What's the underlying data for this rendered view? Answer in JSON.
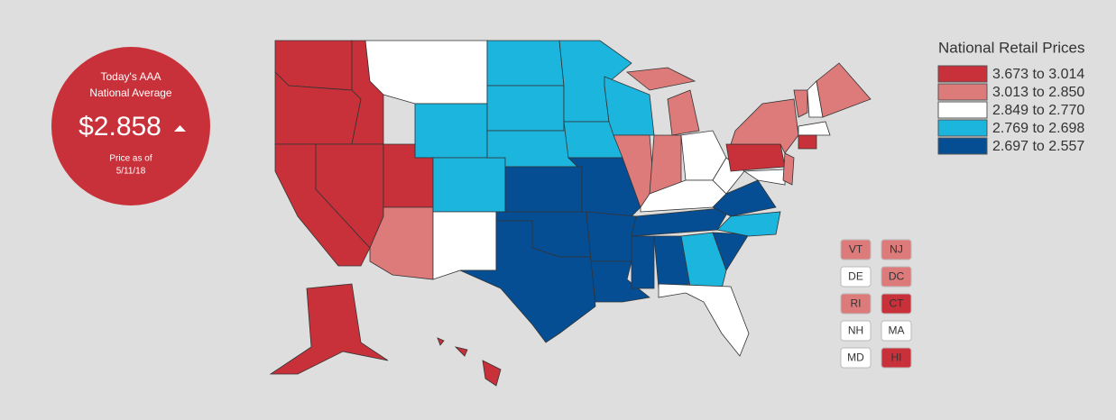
{
  "badge": {
    "title_line1": "Today's AAA",
    "title_line2": "National Average",
    "price": "$2.858",
    "date_label": "Price as of",
    "date": "5/11/18"
  },
  "legend": {
    "title": "National Retail Prices",
    "items": [
      {
        "label": "3.673 to 3.014",
        "color": "#c8313a"
      },
      {
        "label": "3.013 to 2.850",
        "color": "#dd7a7a"
      },
      {
        "label": "2.849 to 2.770",
        "color": "#ffffff"
      },
      {
        "label": "2.769 to 2.698",
        "color": "#1bb5dd"
      },
      {
        "label": "2.697 to 2.557",
        "color": "#064e94"
      }
    ]
  },
  "small_states": [
    {
      "label": "VT",
      "tier": 1
    },
    {
      "label": "NJ",
      "tier": 1
    },
    {
      "label": "DE",
      "tier": 2
    },
    {
      "label": "DC",
      "tier": 1
    },
    {
      "label": "RI",
      "tier": 1
    },
    {
      "label": "CT",
      "tier": 0
    },
    {
      "label": "NH",
      "tier": 2
    },
    {
      "label": "MA",
      "tier": 2
    },
    {
      "label": "MD",
      "tier": 2
    },
    {
      "label": "HI",
      "tier": 0
    }
  ],
  "map_tiers": [
    0,
    0,
    0,
    0,
    0,
    2,
    3,
    0,
    1,
    3,
    2,
    3,
    3,
    3,
    4,
    4,
    4,
    3,
    3,
    4,
    4,
    4,
    3,
    1,
    1,
    1,
    1,
    2,
    2,
    4,
    4,
    4,
    3,
    2,
    4,
    3,
    4,
    2,
    0,
    1,
    2,
    1,
    1,
    2,
    1,
    2,
    0,
    0,
    0,
    0,
    0
  ]
}
